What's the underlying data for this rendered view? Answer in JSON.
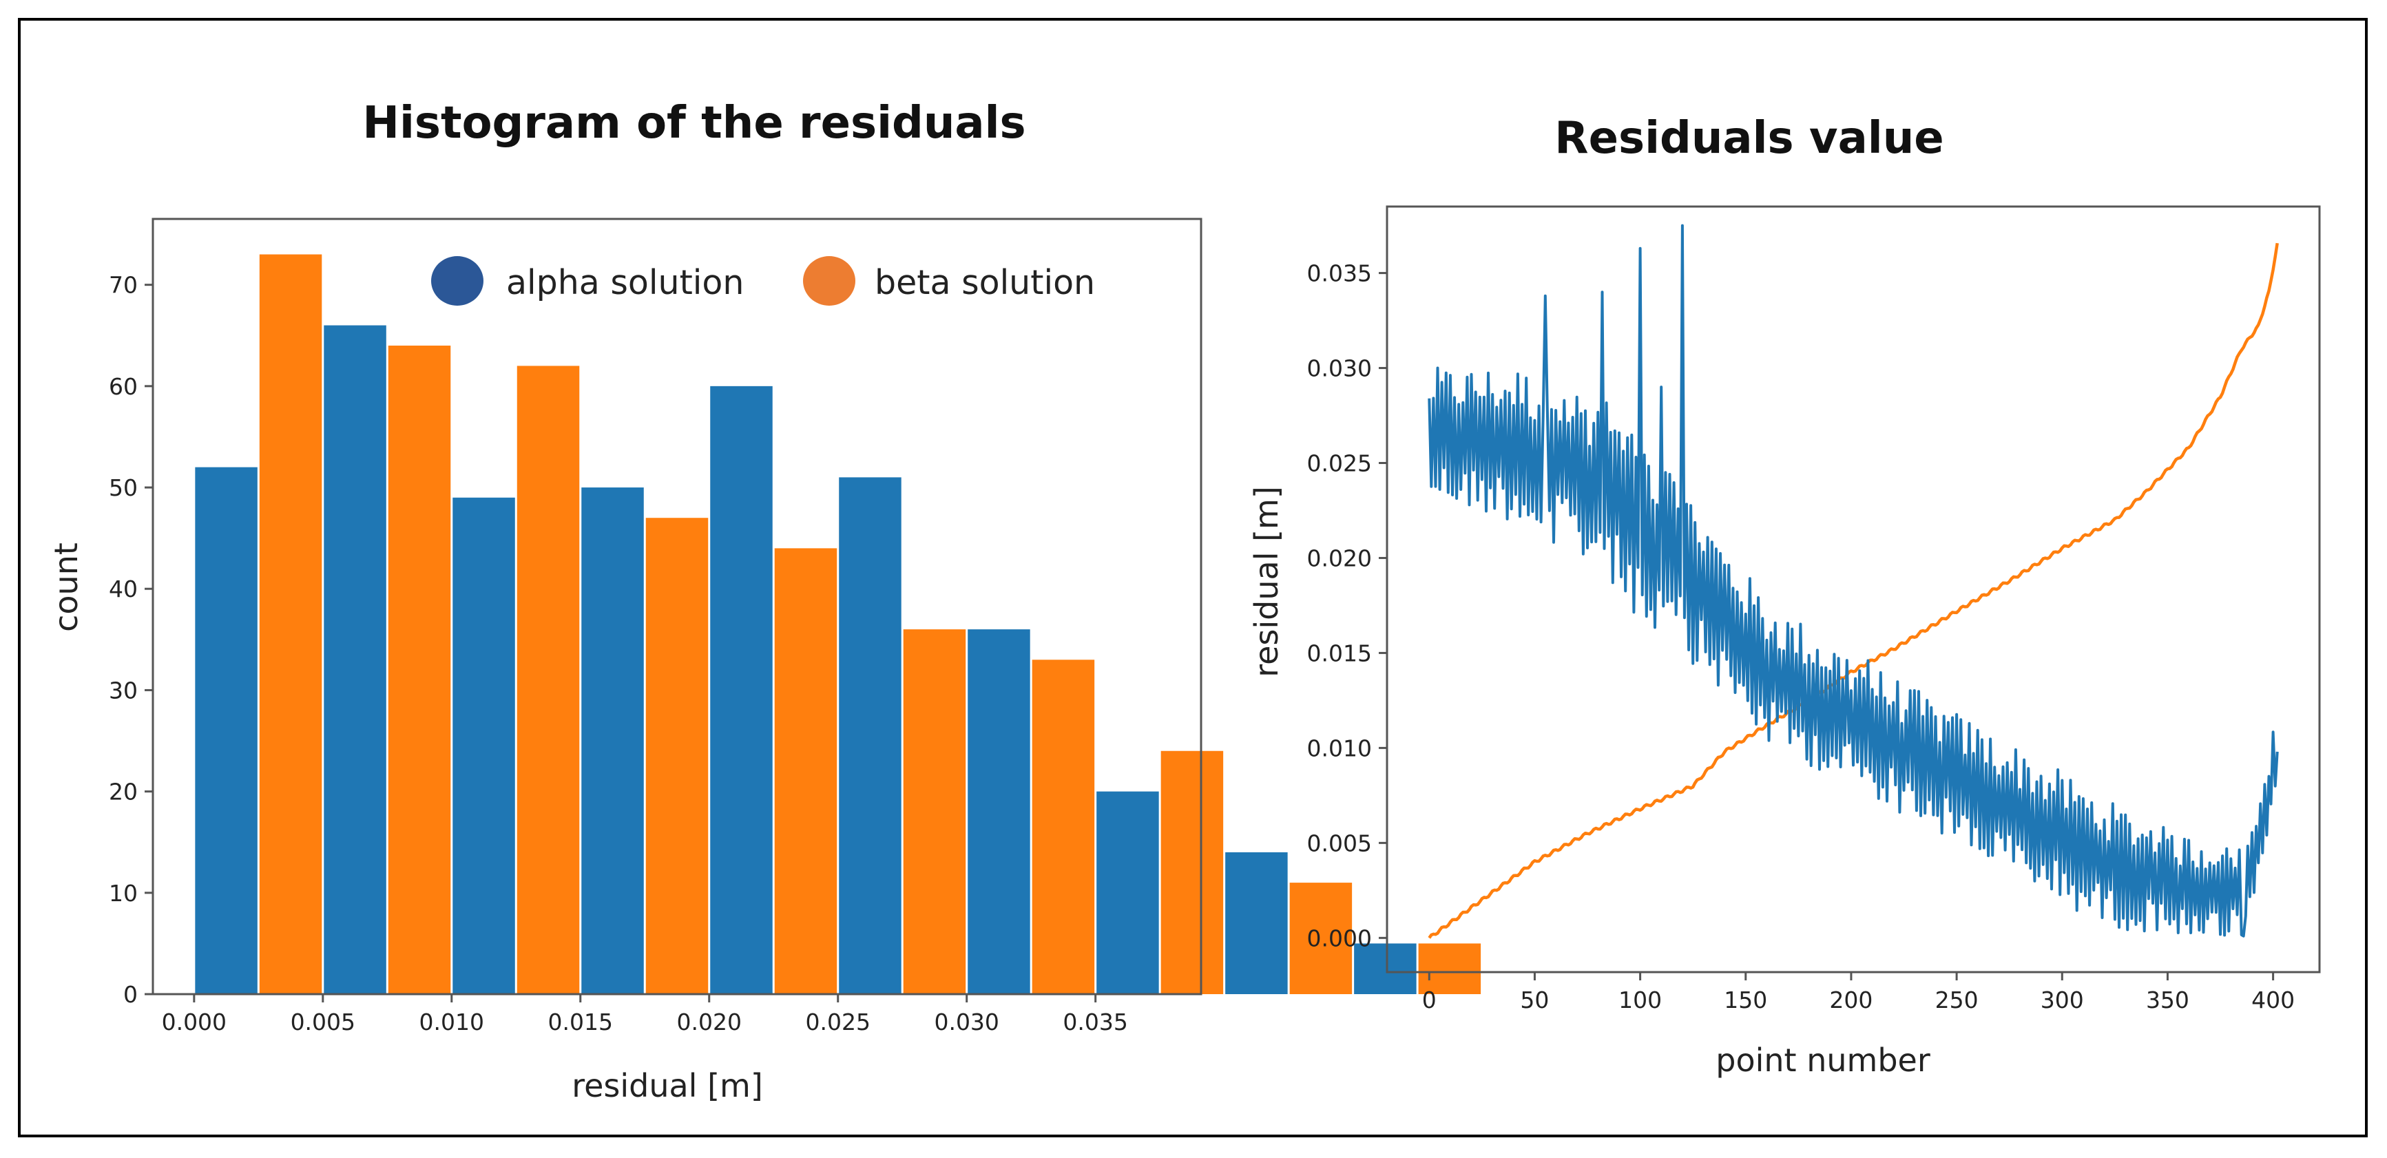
{
  "chart_data": [
    {
      "type": "bar",
      "title": "Histogram of the residuals",
      "xlabel": "residual [m]",
      "ylabel": "count",
      "xlim": [
        -0.0016,
        0.0391
      ],
      "ylim": [
        0,
        76.5
      ],
      "xticks": [
        0.0,
        0.005,
        0.01,
        0.015,
        0.02,
        0.025,
        0.03,
        0.035
      ],
      "xtick_labels": [
        "0.000",
        "0.005",
        "0.010",
        "0.015",
        "0.020",
        "0.025",
        "0.030",
        "0.035"
      ],
      "yticks": [
        0,
        10,
        20,
        30,
        40,
        50,
        60,
        70
      ],
      "ytick_labels": [
        "0",
        "10",
        "20",
        "30",
        "40",
        "50",
        "60",
        "70"
      ],
      "bin_edges": [
        0.0005,
        0.0055,
        0.0105,
        0.0155,
        0.0205,
        0.0255,
        0.0305,
        0.0355,
        0.0405,
        0.0455,
        0.0505
      ],
      "bin_centers": [
        0.0025,
        0.0075,
        0.0125,
        0.0175,
        0.0225,
        0.0275,
        0.0325,
        0.0375,
        0.0425,
        0.0475
      ],
      "series": [
        {
          "name": "alpha solution",
          "color": "#1f77b4",
          "values": [
            52,
            66,
            49,
            50,
            60,
            51,
            36,
            20,
            14,
            5
          ]
        },
        {
          "name": "beta solution",
          "color": "#ff7f0e",
          "values": [
            73,
            64,
            62,
            47,
            44,
            36,
            33,
            24,
            11,
            5
          ]
        }
      ],
      "legend": {
        "position": "top-center",
        "entries": [
          {
            "label": "alpha solution",
            "color": "#2b5797"
          },
          {
            "label": "beta solution",
            "color": "#ed7d31"
          }
        ]
      }
    },
    {
      "type": "line",
      "title": "Residuals value",
      "xlabel": "point number",
      "ylabel": "residual [m]",
      "xlim": [
        -20,
        422
      ],
      "ylim": [
        -0.0018,
        0.0385
      ],
      "xticks": [
        0,
        50,
        100,
        150,
        200,
        250,
        300,
        350,
        400
      ],
      "xtick_labels": [
        "0",
        "50",
        "100",
        "150",
        "200",
        "250",
        "300",
        "350",
        "400"
      ],
      "yticks": [
        0.0,
        0.005,
        0.01,
        0.015,
        0.02,
        0.025,
        0.03,
        0.035
      ],
      "ytick_labels": [
        "0.000",
        "0.005",
        "0.010",
        "0.015",
        "0.020",
        "0.025",
        "0.030",
        "0.035"
      ],
      "series": [
        {
          "name": "alpha solution",
          "color": "#1f77b4",
          "trend": [
            [
              0,
              0.0265
            ],
            [
              40,
              0.026
            ],
            [
              80,
              0.024
            ],
            [
              120,
              0.0195
            ],
            [
              160,
              0.014
            ],
            [
              200,
              0.0115
            ],
            [
              240,
              0.009
            ],
            [
              280,
              0.0065
            ],
            [
              320,
              0.004
            ],
            [
              360,
              0.0025
            ],
            [
              385,
              0.0025
            ],
            [
              395,
              0.006
            ],
            [
              402,
              0.0095
            ]
          ],
          "noise_amplitude": [
            [
              0,
              0.0035
            ],
            [
              100,
              0.005
            ],
            [
              140,
              0.004
            ],
            [
              200,
              0.0035
            ],
            [
              300,
              0.0035
            ],
            [
              400,
              0.0025
            ]
          ],
          "spikes": [
            [
              0,
              0.0284
            ],
            [
              55,
              0.0338
            ],
            [
              82,
              0.034
            ],
            [
              100,
              0.0363
            ],
            [
              110,
              0.029
            ],
            [
              120,
              0.0375
            ],
            [
              208,
              0.0146
            ],
            [
              386,
              0.0001
            ],
            [
              402,
              0.0098
            ]
          ]
        },
        {
          "name": "beta solution",
          "color": "#ff7f0e",
          "points": [
            [
              0,
              0.0
            ],
            [
              25,
              0.002
            ],
            [
              50,
              0.004
            ],
            [
              75,
              0.0055
            ],
            [
              100,
              0.0068
            ],
            [
              125,
              0.008
            ],
            [
              140,
              0.0098
            ],
            [
              160,
              0.0112
            ],
            [
              180,
              0.0125
            ],
            [
              200,
              0.014
            ],
            [
              220,
              0.0152
            ],
            [
              250,
              0.0172
            ],
            [
              275,
              0.0188
            ],
            [
              300,
              0.0205
            ],
            [
              325,
              0.022
            ],
            [
              340,
              0.0235
            ],
            [
              360,
              0.0258
            ],
            [
              375,
              0.0285
            ],
            [
              385,
              0.031
            ],
            [
              393,
              0.0322
            ],
            [
              398,
              0.034
            ],
            [
              402,
              0.0365
            ]
          ]
        }
      ]
    }
  ]
}
